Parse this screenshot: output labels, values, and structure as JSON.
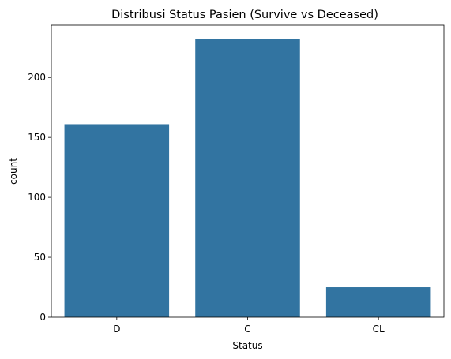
{
  "chart_data": {
    "type": "bar",
    "title": "Distribusi Status Pasien (Survive vs Deceased)",
    "xlabel": "Status",
    "ylabel": "count",
    "categories": [
      "D",
      "C",
      "CL"
    ],
    "values": [
      161,
      232,
      25
    ],
    "ylim": [
      0,
      243.6
    ],
    "yticks": [
      0,
      50,
      100,
      150,
      200
    ],
    "grid": false,
    "bar_color": "#3274a1"
  }
}
